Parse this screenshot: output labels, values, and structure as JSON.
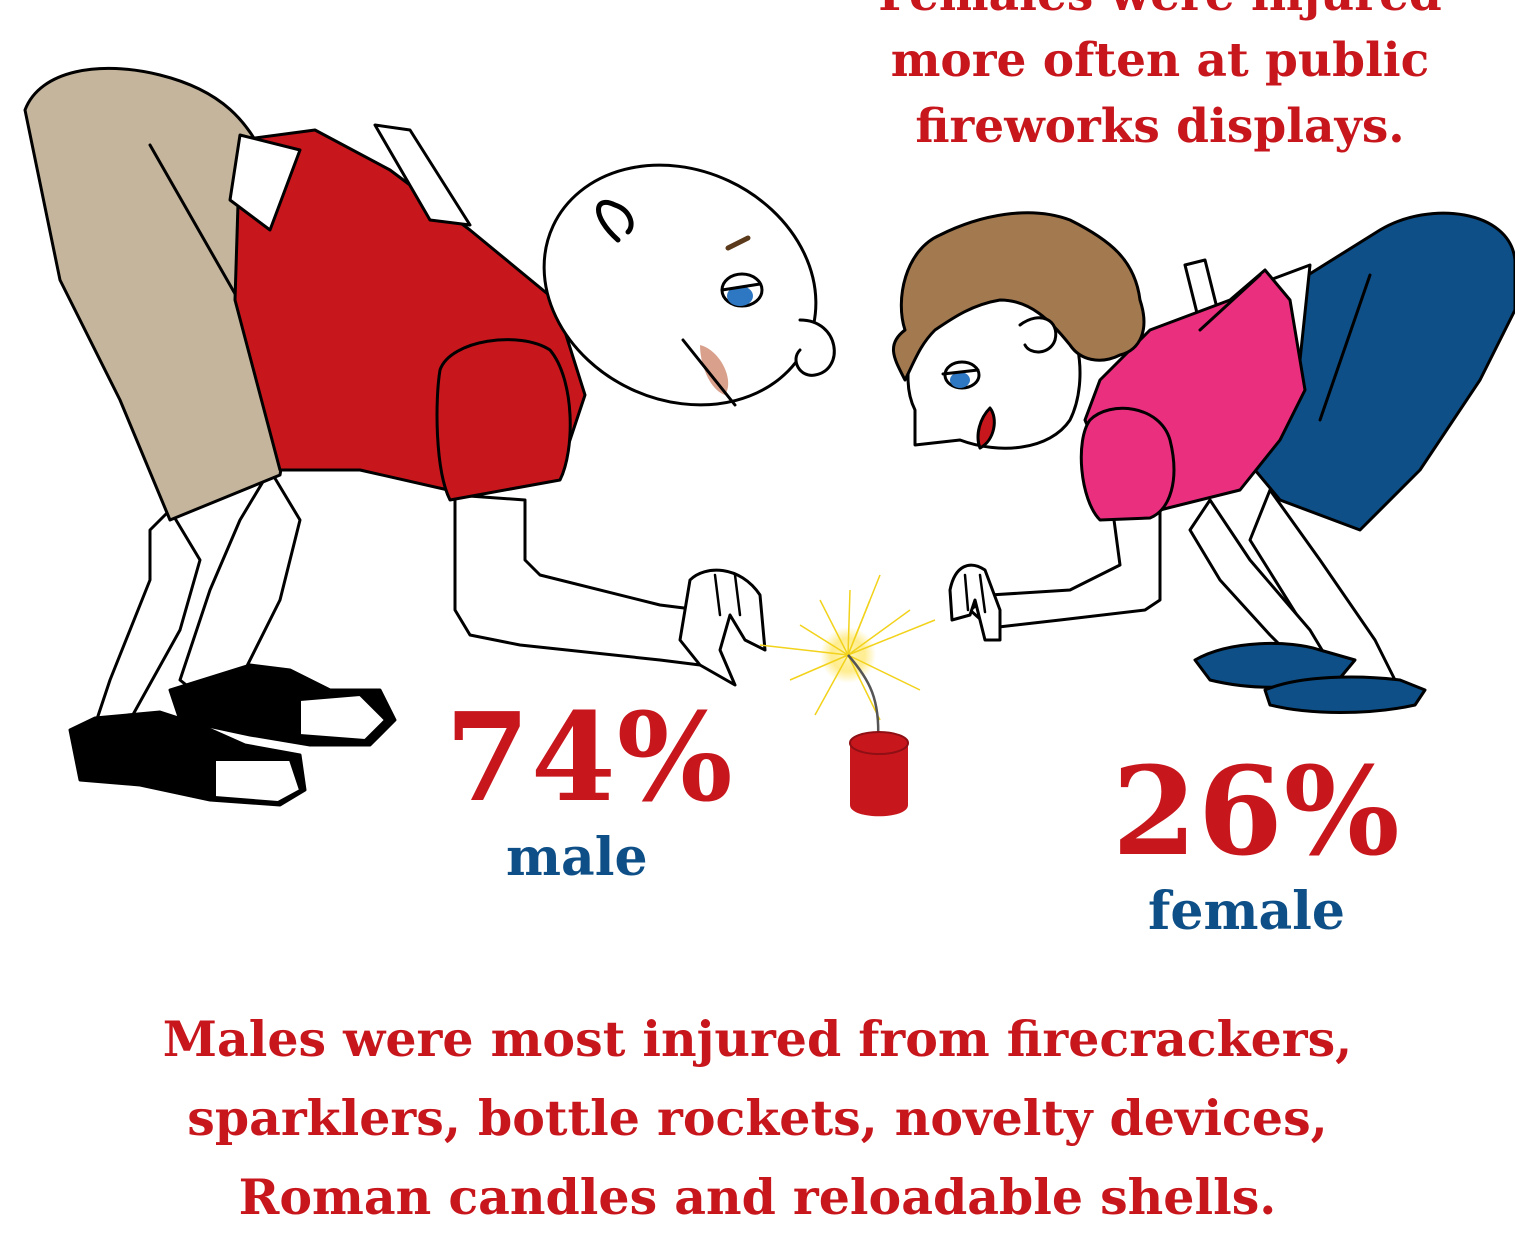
{
  "top_note": {
    "lines": [
      "Females were injured",
      "more often at public",
      "fireworks displays."
    ]
  },
  "male_stat": {
    "value": "74%",
    "label": "male"
  },
  "female_stat": {
    "value": "26%",
    "label": "female"
  },
  "bottom_note": {
    "lines": [
      "Males were most injured from firecrackers,",
      "sparklers, bottle rockets, novelty devices,",
      "Roman candles and reloadable shells."
    ]
  },
  "colors": {
    "accent_red": "#c8161d",
    "label_blue": "#0d4f86",
    "male_shirt": "#c8161d",
    "male_shorts": "#c4b59c",
    "female_shirt": "#ea2f7f",
    "female_skirt": "#0d4f86",
    "female_hair": "#a3794f",
    "firecracker": "#c8161d"
  },
  "icons": [
    "boy-illustration",
    "girl-illustration",
    "firecracker-icon",
    "spark-icon"
  ]
}
